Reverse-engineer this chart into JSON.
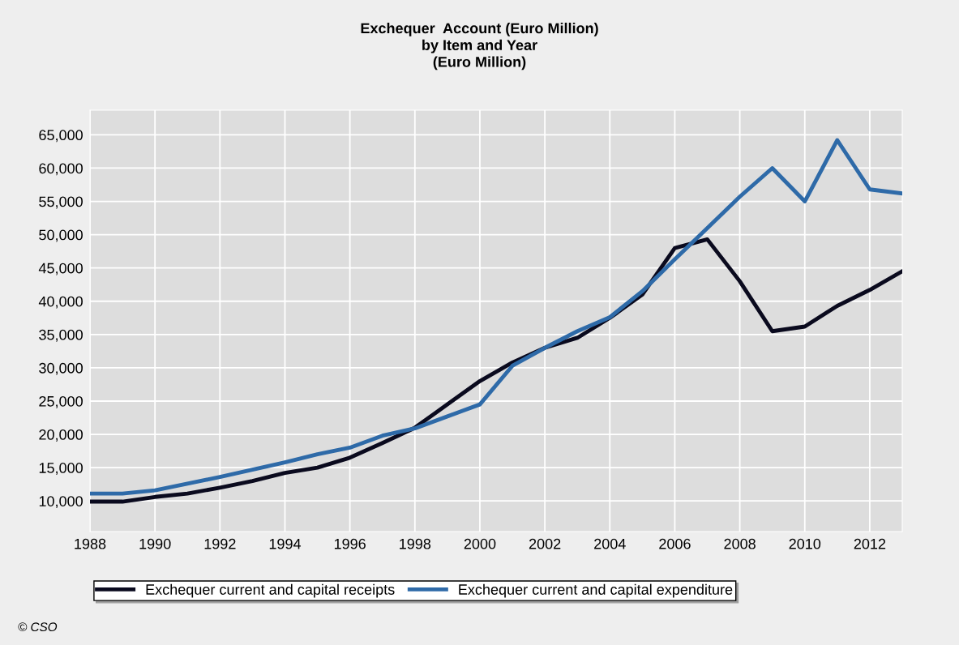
{
  "chart_data": {
    "type": "line",
    "title": "Exchequer  Account (Euro Million)\nby Item and Year\n(Euro Million)",
    "x": [
      1988,
      1989,
      1990,
      1991,
      1992,
      1993,
      1994,
      1995,
      1996,
      1997,
      1998,
      1999,
      2000,
      2001,
      2002,
      2003,
      2004,
      2005,
      2006,
      2007,
      2008,
      2009,
      2010,
      2011,
      2012,
      2013
    ],
    "series": [
      {
        "name": "Exchequer current and capital receipts",
        "color": "#0a0a1e",
        "values": [
          9900,
          9900,
          10600,
          11100,
          12000,
          13000,
          14200,
          15000,
          16500,
          18700,
          21000,
          24500,
          28000,
          30800,
          33000,
          34500,
          37500,
          41000,
          48000,
          49300,
          43000,
          35500,
          36200,
          39300,
          41700,
          44500
        ]
      },
      {
        "name": "Exchequer current and capital expenditure",
        "color": "#2e6aa8",
        "values": [
          11100,
          11100,
          11600,
          12600,
          13600,
          14700,
          15800,
          17000,
          18000,
          19800,
          20900,
          22700,
          24500,
          30300,
          33000,
          35500,
          37600,
          41500,
          46300,
          51000,
          55700,
          60000,
          55000,
          64200,
          56800,
          56200
        ]
      }
    ],
    "xlim": [
      1988,
      2013
    ],
    "xticks": [
      1988,
      1990,
      1992,
      1994,
      1996,
      1998,
      2000,
      2002,
      2004,
      2006,
      2008,
      2010,
      2012
    ],
    "ylim": [
      5400,
      68700
    ],
    "yticks": [
      {
        "value": 10000,
        "label": "10,000"
      },
      {
        "value": 15000,
        "label": "15,000"
      },
      {
        "value": 20000,
        "label": "20,000"
      },
      {
        "value": 25000,
        "label": "25,000"
      },
      {
        "value": 30000,
        "label": "30,000"
      },
      {
        "value": 35000,
        "label": "35,000"
      },
      {
        "value": 40000,
        "label": "40,000"
      },
      {
        "value": 45000,
        "label": "45,000"
      },
      {
        "value": 50000,
        "label": "50,000"
      },
      {
        "value": 55000,
        "label": "55,000"
      },
      {
        "value": 60000,
        "label": "60,000"
      },
      {
        "value": 65000,
        "label": "65,000"
      }
    ],
    "grid": true,
    "legend": "bottom",
    "marker": "none",
    "line_style": "solid",
    "annotations": [
      "© CSO"
    ]
  }
}
